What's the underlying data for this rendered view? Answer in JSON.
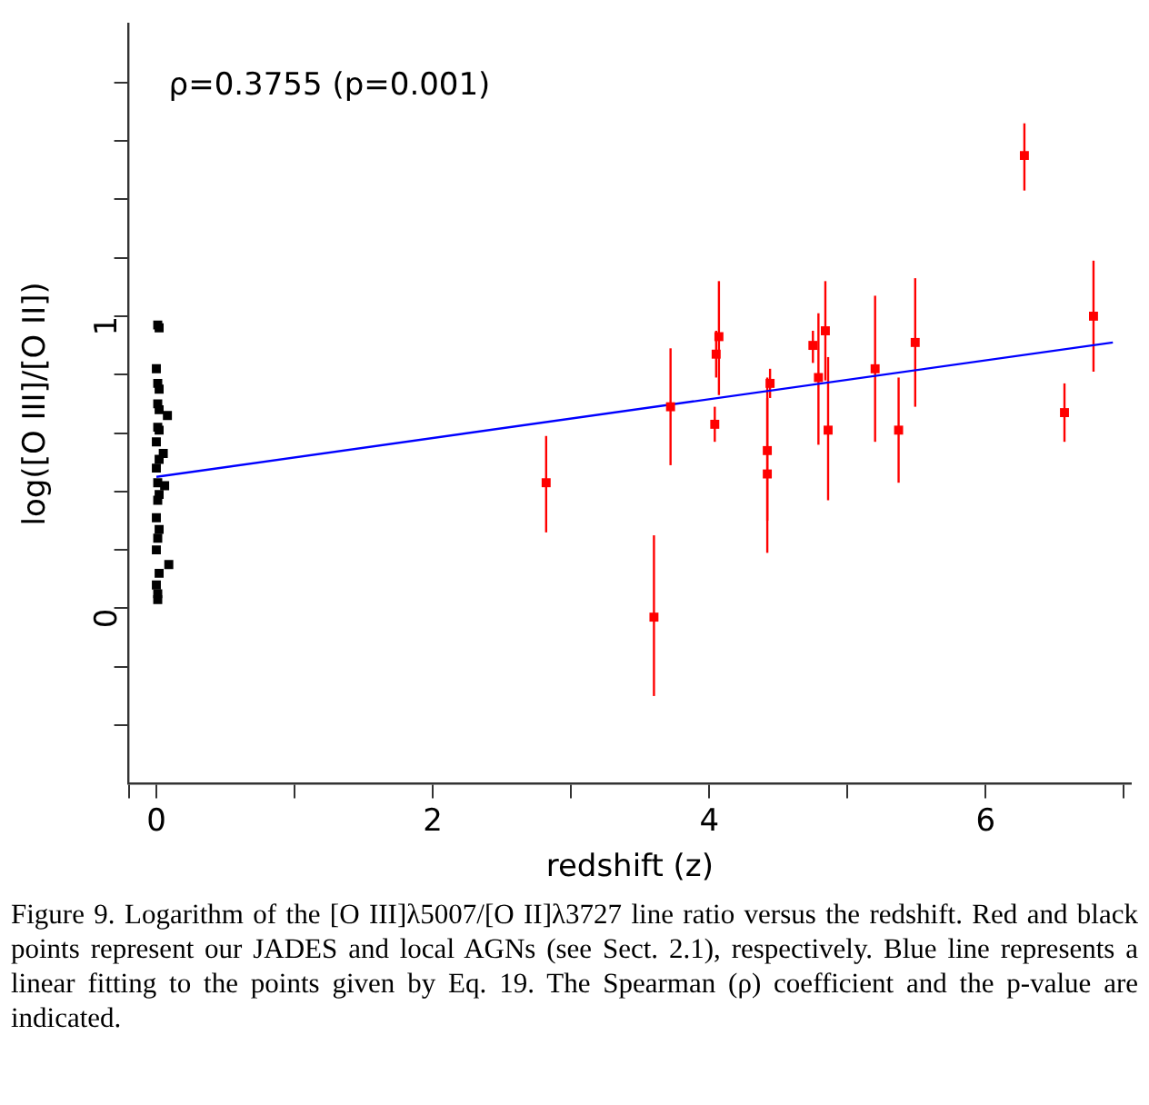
{
  "chart_data": {
    "type": "scatter",
    "xlabel": "redshift (z)",
    "ylabel": "log([O III]/[O II])",
    "xlim": [
      -0.2,
      7.05
    ],
    "ylim": [
      -0.6,
      2
    ],
    "xticks": [
      {
        "value": -0.2,
        "label": null
      },
      0,
      {
        "value": 1,
        "label": null
      },
      2,
      {
        "value": 3,
        "label": null
      },
      4,
      {
        "value": 5,
        "label": null
      },
      6,
      {
        "value": 7,
        "label": null
      }
    ],
    "yticks": [
      {
        "value": -0.4,
        "label": null
      },
      {
        "value": -0.2,
        "label": null
      },
      0,
      {
        "value": 0.2,
        "label": null
      },
      {
        "value": 0.4,
        "label": null
      },
      {
        "value": 0.6,
        "label": null
      },
      {
        "value": 0.8,
        "label": null
      },
      1,
      {
        "value": 1.2,
        "label": null
      },
      {
        "value": 1.4,
        "label": null
      },
      {
        "value": 1.6,
        "label": null
      },
      {
        "value": 1.8,
        "label": null
      }
    ],
    "grid": false,
    "legend": false,
    "marker": "square",
    "annotations": [
      "ρ=0.3755 (p=0.001)",
      "Figure 9. Logarithm of the [O III]λ5007/[O II]λ3727 line ratio versus the redshift. Red and black points represent our JADES and local AGNs (see Sect. 2.1), respectively. Blue line represents a linear fitting to the points given by Eq. 19. The Spearman (ρ) coefficient and the p-value are indicated."
    ],
    "series": [
      {
        "type": "scatter",
        "color": "#ff0000",
        "x": [
          2.82,
          3.6,
          3.72,
          4.04,
          4.05,
          4.07,
          4.42,
          4.42,
          4.44,
          4.75,
          4.79,
          4.84,
          4.86,
          5.2,
          5.37,
          5.49,
          6.28,
          6.57,
          6.78
        ],
        "values": [
          0.43,
          -0.03,
          0.69,
          0.63,
          0.87,
          0.93,
          0.54,
          0.46,
          0.77,
          0.9,
          0.79,
          0.95,
          0.61,
          0.82,
          0.61,
          0.91,
          1.55,
          0.67,
          1.0
        ],
        "errors": [
          [
            0.26,
            0.59
          ],
          [
            -0.3,
            0.25
          ],
          [
            0.49,
            0.89
          ],
          [
            0.57,
            0.69
          ],
          [
            0.79,
            0.95
          ],
          [
            0.73,
            1.12
          ],
          [
            0.3,
            0.79
          ],
          [
            0.19,
            0.72
          ],
          [
            0.72,
            0.82
          ],
          [
            0.84,
            0.95
          ],
          [
            0.56,
            1.01
          ],
          [
            0.78,
            1.12
          ],
          [
            0.37,
            0.86
          ],
          [
            0.57,
            1.07
          ],
          [
            0.43,
            0.79
          ],
          [
            0.69,
            1.13
          ],
          [
            1.43,
            1.66
          ],
          [
            0.57,
            0.77
          ],
          [
            0.81,
            1.19
          ]
        ]
      },
      {
        "type": "scatter",
        "color": "#000000",
        "x": [
          0.01,
          0.02,
          0.0,
          0.01,
          0.02,
          0.01,
          0.02,
          0.08,
          0.01,
          0.02,
          0.0,
          0.05,
          0.02,
          0.0,
          0.01,
          0.06,
          0.02,
          0.01,
          0.0,
          0.02,
          0.01,
          0.0,
          0.09,
          0.02,
          0.0,
          0.01,
          0.01
        ],
        "values": [
          0.97,
          0.96,
          0.82,
          0.77,
          0.75,
          0.7,
          0.68,
          0.66,
          0.62,
          0.61,
          0.57,
          0.53,
          0.51,
          0.48,
          0.43,
          0.42,
          0.39,
          0.37,
          0.31,
          0.27,
          0.24,
          0.2,
          0.15,
          0.12,
          0.08,
          0.05,
          0.03
        ]
      },
      {
        "type": "line",
        "color": "#0000ff",
        "marker": "none",
        "x": [
          0,
          6.92
        ],
        "values": [
          0.45,
          0.91
        ]
      }
    ]
  }
}
